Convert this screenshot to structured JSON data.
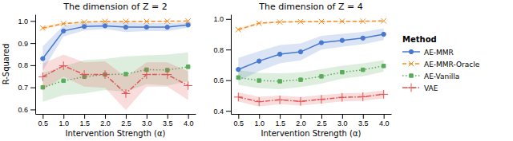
{
  "chart_data": [
    {
      "type": "line",
      "title": "The dimension of Z = 2",
      "xlabel": "Intervention Strength (α)",
      "ylabel": "R-Squared",
      "x": [
        0.5,
        1.0,
        1.5,
        2.0,
        2.5,
        3.0,
        3.5,
        4.0
      ],
      "xlim": [
        0.32,
        4.18
      ],
      "xticks": [
        0.5,
        {
          "value": 1.0,
          "label": "1.0"
        },
        1.5,
        {
          "value": 2.0,
          "label": "2.0"
        },
        2.5,
        {
          "value": 3.0,
          "label": "3.0"
        },
        3.5,
        {
          "value": 4.0,
          "label": "4.0"
        }
      ],
      "ylim": [
        0.58,
        1.03
      ],
      "yticks": [
        0.6,
        0.7,
        0.8,
        0.9,
        {
          "value": 1.0,
          "label": "1.0"
        }
      ],
      "series": [
        {
          "name": "AE-MMR",
          "color": "#4878cf",
          "marker": "circle",
          "line_style": "solid",
          "values": [
            0.83,
            0.955,
            0.975,
            0.978,
            0.972,
            0.972,
            0.972,
            0.982
          ],
          "std": [
            0.055,
            0.025,
            0.018,
            0.015,
            0.022,
            0.018,
            0.018,
            0.012
          ]
        },
        {
          "name": "AE-MMR-Oracle",
          "color": "#f58c20",
          "marker": "x",
          "line_style": "dashed",
          "values": [
            0.968,
            0.988,
            0.995,
            0.998,
            0.998,
            0.998,
            0.999,
            1.0
          ],
          "std": [
            0.008,
            0.005,
            0.003,
            0.002,
            0.002,
            0.002,
            0.001,
            0.001
          ]
        },
        {
          "name": "AE-Vanilla",
          "color": "#5aac5a",
          "marker": "square",
          "line_style": "dotted",
          "values": [
            0.7,
            0.73,
            0.748,
            0.758,
            0.76,
            0.78,
            0.778,
            0.793
          ],
          "std": [
            0.065,
            0.065,
            0.075,
            0.07,
            0.08,
            0.065,
            0.07,
            0.065
          ]
        },
        {
          "name": "VAE",
          "color": "#e05555",
          "marker": "plus",
          "line_style": "dashdot",
          "values": [
            0.748,
            0.798,
            0.758,
            0.758,
            0.672,
            0.758,
            0.758,
            0.708
          ],
          "std": [
            0.06,
            0.05,
            0.055,
            0.06,
            0.075,
            0.055,
            0.055,
            0.065
          ]
        }
      ]
    },
    {
      "type": "line",
      "title": "The dimension of Z = 4",
      "xlabel": "Intervention Strength (α)",
      "x": [
        0.5,
        1.0,
        1.5,
        2.0,
        2.5,
        3.0,
        3.5,
        4.0
      ],
      "xlim": [
        0.32,
        4.18
      ],
      "xticks": [
        0.5,
        {
          "value": 1.0,
          "label": "1.0"
        },
        1.5,
        {
          "value": 2.0,
          "label": "2.0"
        },
        2.5,
        {
          "value": 3.0,
          "label": "3.0"
        },
        3.5,
        {
          "value": 4.0,
          "label": "4.0"
        }
      ],
      "ylim": [
        0.38,
        1.03
      ],
      "yticks": [
        0.4,
        0.6,
        0.8,
        {
          "value": 1.0,
          "label": "1.0"
        }
      ],
      "legend": "right",
      "legend_title": "Method",
      "series": [
        {
          "name": "AE-MMR",
          "color": "#4878cf",
          "marker": "circle",
          "line_style": "solid",
          "values": [
            0.67,
            0.725,
            0.77,
            0.785,
            0.845,
            0.86,
            0.875,
            0.9
          ],
          "std": [
            0.075,
            0.065,
            0.06,
            0.055,
            0.045,
            0.042,
            0.04,
            0.038
          ]
        },
        {
          "name": "AE-MMR-Oracle",
          "color": "#f58c20",
          "marker": "x",
          "line_style": "dashed",
          "values": [
            0.93,
            0.972,
            0.98,
            0.982,
            0.983,
            0.985,
            0.985,
            0.987
          ],
          "std": [
            0.01,
            0.006,
            0.005,
            0.004,
            0.004,
            0.003,
            0.003,
            0.003
          ]
        },
        {
          "name": "AE-Vanilla",
          "color": "#5aac5a",
          "marker": "square",
          "line_style": "dotted",
          "values": [
            0.618,
            0.598,
            0.593,
            0.603,
            0.625,
            0.652,
            0.668,
            0.693
          ],
          "std": [
            0.048,
            0.05,
            0.052,
            0.048,
            0.048,
            0.042,
            0.042,
            0.038
          ]
        },
        {
          "name": "VAE",
          "color": "#e05555",
          "marker": "plus",
          "line_style": "dashdot",
          "values": [
            0.49,
            0.46,
            0.472,
            0.462,
            0.475,
            0.488,
            0.492,
            0.508
          ],
          "std": [
            0.03,
            0.032,
            0.028,
            0.028,
            0.028,
            0.026,
            0.026,
            0.026
          ]
        }
      ]
    }
  ]
}
